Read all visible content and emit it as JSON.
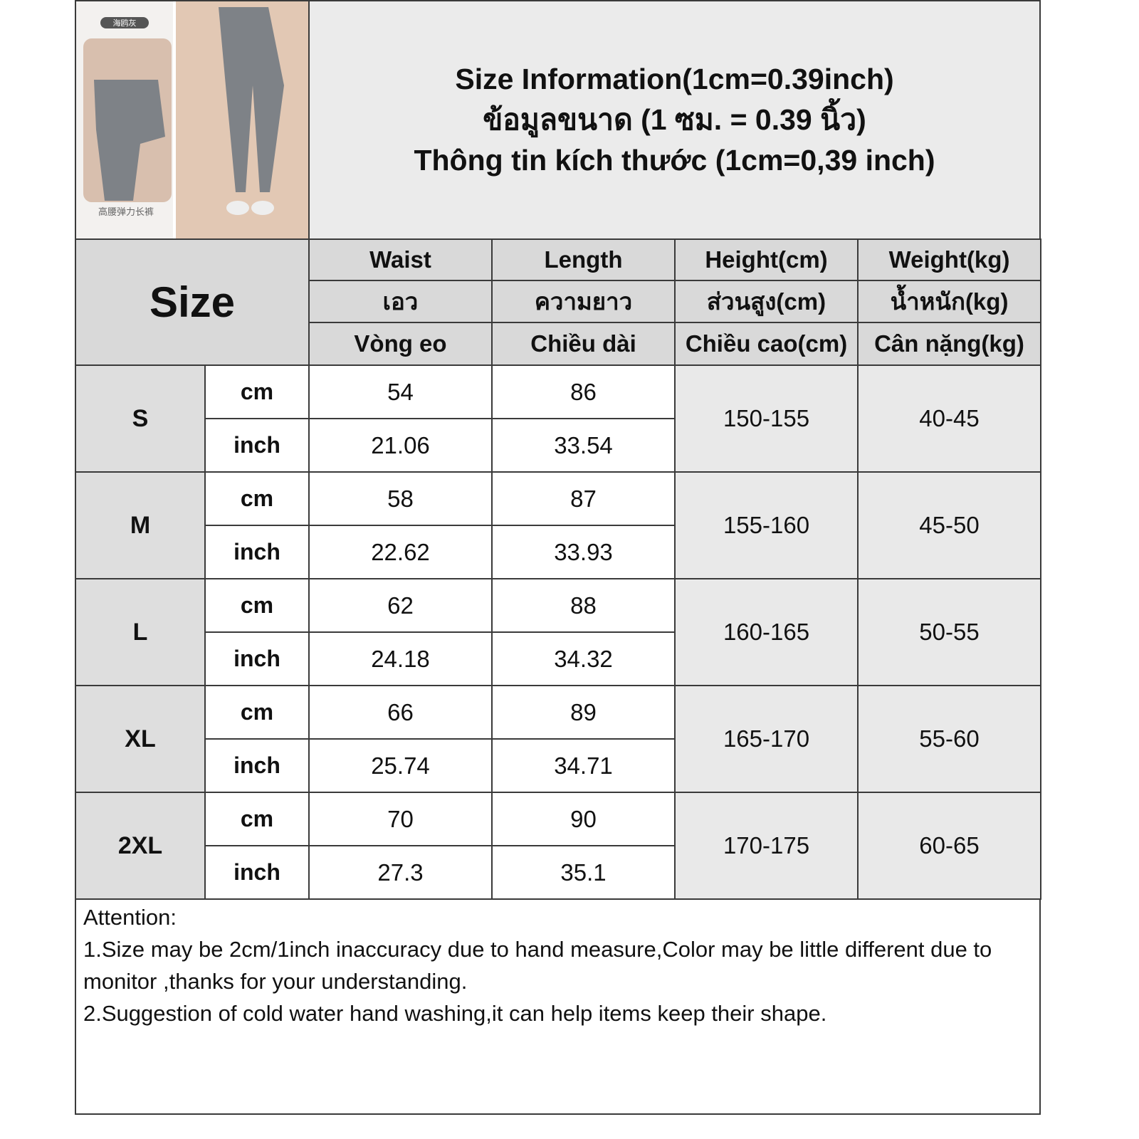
{
  "image": {
    "tag": "海鸥灰",
    "caption": "高腰弹力长裤"
  },
  "header": {
    "title": [
      "Size Information(1cm=0.39inch)",
      "ข้อมูลขนาด (1 ซม. = 0.39 นิ้ว)",
      "Thông tin kích thước (1cm=0,39 inch)"
    ]
  },
  "table": {
    "size_label": "Size",
    "columns": [
      {
        "en": "Waist",
        "th": "เอว",
        "vi": "Vòng eo"
      },
      {
        "en": "Length",
        "th": "ความยาว",
        "vi": "Chiều dài"
      },
      {
        "en": "Height(cm)",
        "th": "ส่วนสูง(cm)",
        "vi": "Chiều cao(cm)"
      },
      {
        "en": "Weight(kg)",
        "th": "น้ำหนัก(kg)",
        "vi": "Cân nặng(kg)"
      }
    ],
    "units": [
      "cm",
      "inch"
    ],
    "rows": [
      {
        "size": "S",
        "cm": [
          54,
          86
        ],
        "inch": [
          21.06,
          33.54
        ],
        "height": "150-155",
        "weight": "40-45"
      },
      {
        "size": "M",
        "cm": [
          58,
          87
        ],
        "inch": [
          22.62,
          33.93
        ],
        "height": "155-160",
        "weight": "45-50"
      },
      {
        "size": "L",
        "cm": [
          62,
          88
        ],
        "inch": [
          24.18,
          34.32
        ],
        "height": "160-165",
        "weight": "50-55"
      },
      {
        "size": "XL",
        "cm": [
          66,
          89
        ],
        "inch": [
          25.74,
          34.71
        ],
        "height": "165-170",
        "weight": "55-60"
      },
      {
        "size": "2XL",
        "cm": [
          70,
          90
        ],
        "inch": [
          27.3,
          35.1
        ],
        "height": "170-175",
        "weight": "60-65"
      }
    ]
  },
  "notes": {
    "heading": "Attention:",
    "items": [
      "1.Size may be 2cm/1inch inaccuracy due to hand measure,Color may be little different due to monitor ,thanks for your understanding.",
      "2.Suggestion of cold water hand washing,it can help items keep their shape."
    ]
  }
}
